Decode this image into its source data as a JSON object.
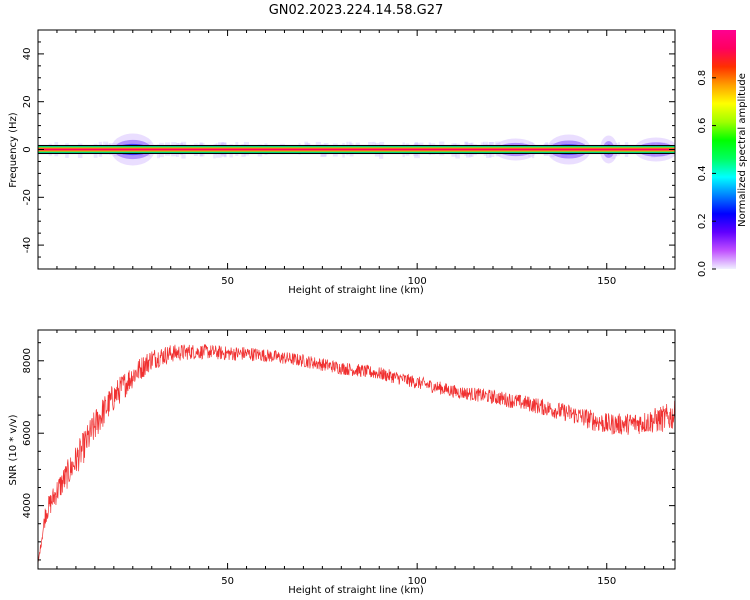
{
  "title": "GN02.2023.224.14.58.G27",
  "chart_data": [
    {
      "type": "heatmap",
      "xlabel": "Height of straight line (km)",
      "ylabel": "Frequency (Hz)",
      "xlim": [
        0,
        168
      ],
      "ylim": [
        -50,
        50
      ],
      "x_ticks": [
        50,
        100,
        150
      ],
      "y_ticks": [
        -40,
        -20,
        0,
        20,
        40
      ],
      "ridge_frequency": 0,
      "colorbar": {
        "label": "Normalized spectral amplitude",
        "range": [
          0,
          1
        ],
        "ticks": [
          "0.0",
          "0.2",
          "0.4",
          "0.6",
          "0.8"
        ],
        "tick_values": [
          0.0,
          0.2,
          0.4,
          0.6,
          0.8
        ],
        "colors": [
          "#f0f0ff",
          "#c050ff",
          "#6000ff",
          "#0000ff",
          "#0080ff",
          "#00ffff",
          "#00ff60",
          "#00ff00",
          "#a0ff00",
          "#ffff00",
          "#ffa000",
          "#ff3000",
          "#ff0060",
          "#ff0090"
        ]
      },
      "blobs": [
        {
          "x_start": 20,
          "x_end": 30,
          "amplitude": 0.5
        },
        {
          "x_start": 121,
          "x_end": 131,
          "amplitude": 0.25
        },
        {
          "x_start": 135,
          "x_end": 145,
          "amplitude": 0.45
        },
        {
          "x_start": 149,
          "x_end": 152,
          "amplitude": 0.4
        },
        {
          "x_start": 158,
          "x_end": 168,
          "amplitude": 0.3
        }
      ]
    },
    {
      "type": "line",
      "xlabel": "Height of straight line (km)",
      "ylabel": "SNR (10 * v/v)",
      "xlim": [
        0,
        168
      ],
      "ylim": [
        2250,
        8850
      ],
      "x_ticks": [
        50,
        100,
        150
      ],
      "y_ticks": [
        4000,
        6000,
        8000
      ],
      "color": "#f03030",
      "x": [
        0,
        2,
        5,
        8,
        12,
        16,
        20,
        25,
        30,
        35,
        40,
        45,
        50,
        55,
        60,
        70,
        80,
        90,
        100,
        110,
        120,
        130,
        140,
        145,
        150,
        155,
        160,
        165,
        168
      ],
      "y": [
        2400,
        3800,
        4400,
        4900,
        5600,
        6400,
        7000,
        7600,
        8050,
        8200,
        8250,
        8250,
        8200,
        8200,
        8150,
        8000,
        7800,
        7650,
        7400,
        7150,
        7000,
        6800,
        6550,
        6400,
        6250,
        6250,
        6300,
        6400,
        6500
      ],
      "noise_amplitude": [
        0,
        300,
        350,
        400,
        450,
        450,
        400,
        350,
        300,
        250,
        220,
        200,
        200,
        200,
        180,
        180,
        180,
        180,
        180,
        180,
        200,
        220,
        250,
        280,
        300,
        300,
        320,
        380,
        400
      ]
    }
  ]
}
